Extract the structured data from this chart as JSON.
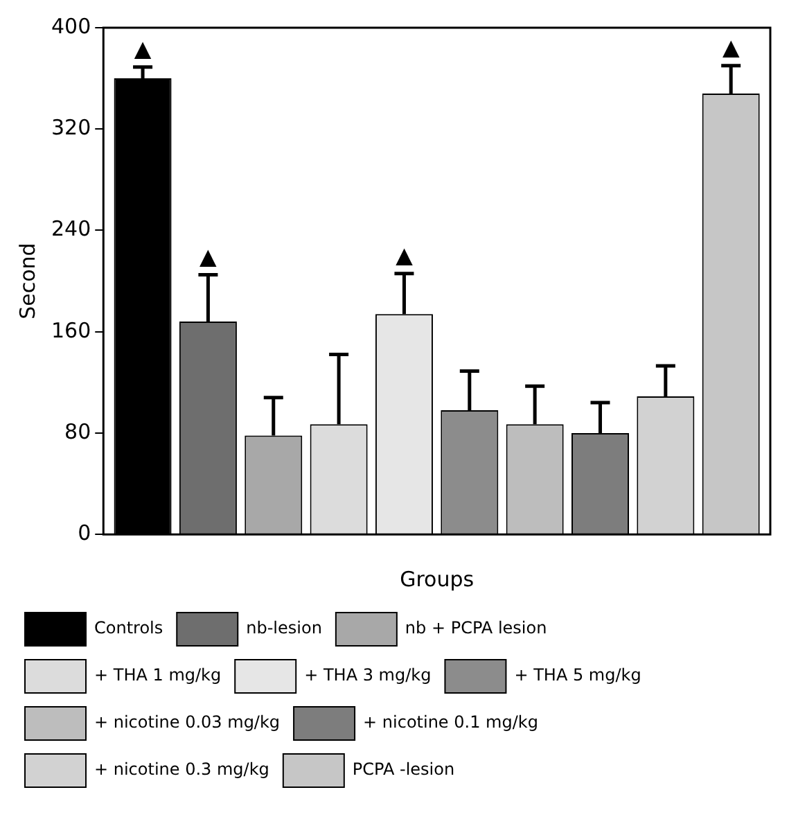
{
  "chart_data": {
    "type": "bar",
    "xlabel": "Groups",
    "ylabel": "Second",
    "categories": [
      null
    ],
    "ylim": [
      0,
      400
    ],
    "yticks": [
      0,
      80,
      160,
      240,
      320,
      400
    ],
    "grid": false,
    "legend": "bottom",
    "series": [
      {
        "name": "Controls",
        "color": "#000000",
        "values": [
          360
        ],
        "errors": [
          [
            360,
            369
          ]
        ],
        "value_labels": [
          "▲"
        ]
      },
      {
        "name": "nb-lesion",
        "color": "#6e6e6e",
        "values": [
          168
        ],
        "errors": [
          [
            168,
            205
          ]
        ],
        "value_labels": [
          "▲"
        ]
      },
      {
        "name": "nb + PCPA lesion",
        "color": "#a8a8a8",
        "values": [
          78
        ],
        "errors": [
          [
            78,
            108
          ]
        ]
      },
      {
        "name": "+ THA 1 mg/kg",
        "color": "#dcdcdc",
        "values": [
          87
        ],
        "errors": [
          [
            87,
            142
          ]
        ]
      },
      {
        "name": "+ THA 3 mg/kg",
        "color": "#e6e6e6",
        "values": [
          174
        ],
        "errors": [
          [
            174,
            206
          ]
        ],
        "value_labels": [
          "▲"
        ]
      },
      {
        "name": "+ THA 5 mg/kg",
        "color": "#8c8c8c",
        "values": [
          98
        ],
        "errors": [
          [
            98,
            129
          ]
        ]
      },
      {
        "name": "+ nicotine 0.03 mg/kg",
        "color": "#bdbdbd",
        "values": [
          87
        ],
        "errors": [
          [
            87,
            117
          ]
        ]
      },
      {
        "name": "+ nicotine 0.1 mg/kg",
        "color": "#7d7d7d",
        "values": [
          80
        ],
        "errors": [
          [
            80,
            104
          ]
        ]
      },
      {
        "name": "+ nicotine 0.3 mg/kg",
        "color": "#d2d2d2",
        "values": [
          109
        ],
        "errors": [
          [
            109,
            133
          ]
        ]
      },
      {
        "name": "PCPA -lesion",
        "color": "#c6c6c6",
        "values": [
          348
        ],
        "errors": [
          [
            348,
            370
          ]
        ],
        "value_labels": [
          "▲"
        ]
      }
    ]
  }
}
